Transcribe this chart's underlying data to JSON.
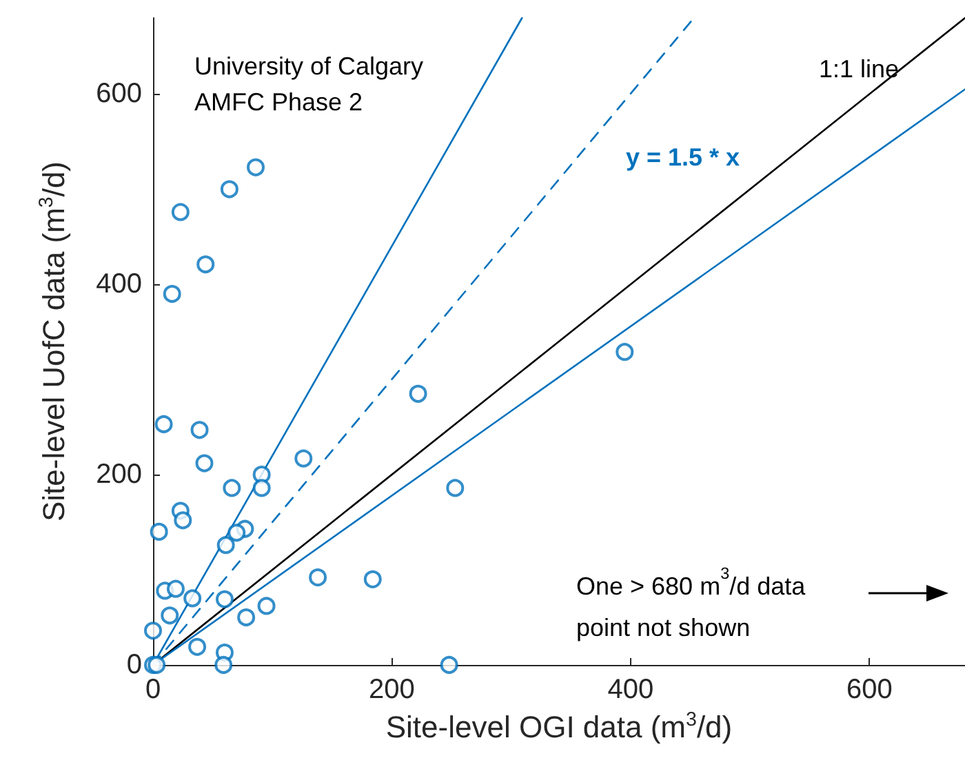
{
  "chart_data": {
    "type": "scatter",
    "title": "University of Calgary",
    "subtitle": "AMFC Phase 2",
    "xlabel": "Site-level OGI data (m$^{3}$/d)",
    "ylabel": "Site-level UofC data (m$^{3}$/d)",
    "xlim": [
      0,
      680
    ],
    "ylim": [
      0,
      680
    ],
    "xticks": [
      0,
      200,
      400,
      600
    ],
    "yticks": [
      0,
      200,
      400,
      600
    ],
    "grid": false,
    "marker": "circle",
    "series": [
      {
        "color": "#0072bd",
        "x": [
          86,
          64,
          23,
          44,
          16,
          222,
          9,
          39,
          43,
          126,
          91,
          91,
          66,
          23,
          25,
          5,
          77,
          70,
          61,
          138,
          184,
          10,
          19,
          33,
          60,
          95,
          14,
          78,
          0,
          37,
          60,
          59,
          0,
          3,
          395,
          253,
          248
        ],
        "values": [
          523,
          500,
          476,
          421,
          390,
          285,
          253,
          247,
          212,
          217,
          200,
          186,
          186,
          162,
          152,
          140,
          143,
          139,
          126,
          92,
          90,
          78,
          80,
          70,
          69,
          62,
          52,
          50,
          36,
          19,
          13,
          0,
          0,
          0,
          329,
          186,
          0
        ]
      },
      {
        "type": "line",
        "marker": "none",
        "line_style": "solid",
        "color": "#000000",
        "x": [
          0,
          680
        ],
        "values": [
          0,
          680
        ]
      },
      {
        "type": "line",
        "marker": "none",
        "line_style": "dashed",
        "color": "#0072bd",
        "x": [
          0,
          453
        ],
        "values": [
          0,
          680
        ]
      },
      {
        "type": "line",
        "marker": "none",
        "line_style": "solid",
        "color": "#0072bd",
        "x": [
          0,
          309
        ],
        "values": [
          0,
          680
        ]
      },
      {
        "type": "line",
        "marker": "none",
        "line_style": "solid",
        "color": "#0072bd",
        "x": [
          0,
          680
        ],
        "values": [
          0,
          605
        ]
      }
    ],
    "annotations": [
      "1:1 line",
      "y = 1.5 * x",
      "One > 680 m$^{3}$/d data\npoint not shown"
    ]
  }
}
